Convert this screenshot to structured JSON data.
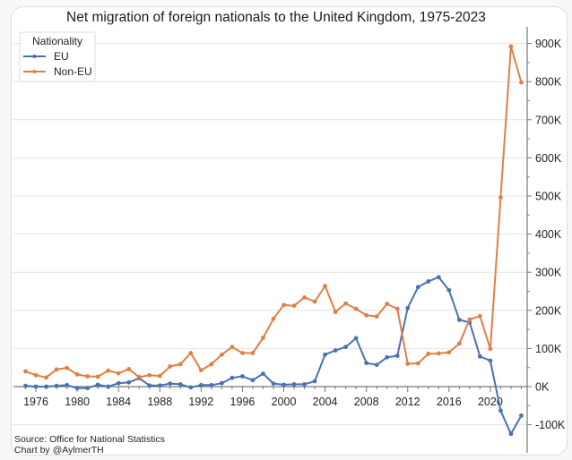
{
  "chart_data": {
    "type": "line",
    "title": "Net migration of foreign nationals to the United Kingdom, 1975-2023",
    "xlabel": "",
    "ylabel": "",
    "x": [
      1975,
      1976,
      1977,
      1978,
      1979,
      1980,
      1981,
      1982,
      1983,
      1984,
      1985,
      1986,
      1987,
      1988,
      1989,
      1990,
      1991,
      1992,
      1993,
      1994,
      1995,
      1996,
      1997,
      1998,
      1999,
      2000,
      2001,
      2002,
      2003,
      2004,
      2005,
      2006,
      2007,
      2008,
      2009,
      2010,
      2011,
      2012,
      2013,
      2014,
      2015,
      2016,
      2017,
      2018,
      2019,
      2020,
      2021,
      2022,
      2023
    ],
    "series": [
      {
        "name": "EU",
        "color": "#4a72b0",
        "values": [
          2000,
          0,
          0,
          2000,
          4000,
          -4000,
          -4000,
          5000,
          0,
          9000,
          11000,
          22000,
          3000,
          3000,
          8000,
          6000,
          -2000,
          4000,
          4000,
          9000,
          23000,
          27000,
          17000,
          34000,
          8000,
          5000,
          6000,
          6000,
          14000,
          84000,
          95000,
          104000,
          127000,
          62000,
          57000,
          77000,
          81000,
          206000,
          261000,
          276000,
          287000,
          253000,
          175000,
          168000,
          79000,
          68000,
          -63000,
          -124000,
          -76000
        ]
      },
      {
        "name": "Non-EU",
        "color": "#e07f45",
        "values": [
          40000,
          30000,
          24000,
          45000,
          49000,
          32000,
          27000,
          26000,
          42000,
          35000,
          46000,
          25000,
          30000,
          28000,
          53000,
          59000,
          88000,
          43000,
          59000,
          84000,
          104000,
          88000,
          88000,
          128000,
          178000,
          214000,
          212000,
          234000,
          223000,
          264000,
          196000,
          218000,
          204000,
          187000,
          184000,
          217000,
          204000,
          60000,
          61000,
          86000,
          87000,
          90000,
          113000,
          176000,
          185000,
          99000,
          496000,
          892000,
          798000
        ]
      }
    ],
    "x_ticks": [
      1976,
      1980,
      1984,
      1988,
      1992,
      1996,
      2000,
      2004,
      2008,
      2012,
      2016,
      2020
    ],
    "x_tick_labels": [
      "1976",
      "1980",
      "1984",
      "1988",
      "1992",
      "1996",
      "2000",
      "2004",
      "2008",
      "2012",
      "2016",
      "2020"
    ],
    "xlim": [
      1973.5,
      2024
    ],
    "y_ticks": [
      -100000,
      0,
      100000,
      200000,
      300000,
      400000,
      500000,
      600000,
      700000,
      800000,
      900000
    ],
    "y_tick_labels": [
      "-100K",
      "0K",
      "100K",
      "200K",
      "300K",
      "400K",
      "500K",
      "600K",
      "700K",
      "800K",
      "900K"
    ],
    "ylim": [
      -155000,
      945000
    ],
    "y_axis_side": "right",
    "grid": true,
    "legend": {
      "title": "Nationality",
      "position": "top-left",
      "entries": [
        "EU",
        "Non-EU"
      ]
    }
  },
  "footer": {
    "source": "Source: Office for National Statistics",
    "credit": "Chart by @AylmerTH"
  }
}
